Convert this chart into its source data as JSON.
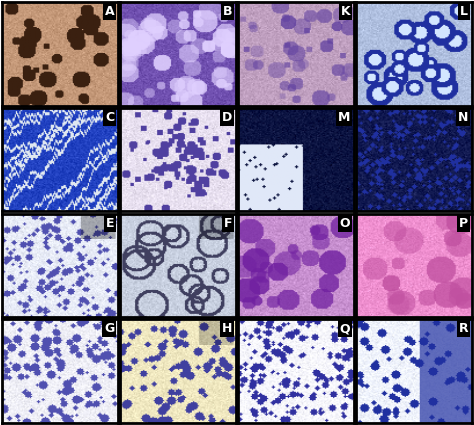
{
  "figure_width": 4.74,
  "figure_height": 4.25,
  "dpi": 100,
  "border_color": "#000000",
  "border_width": 2,
  "label_bg_color": "#000000",
  "label_text_color": "#ffffff",
  "label_fontsize": 9,
  "label_fontweight": "bold",
  "grid_rows": 4,
  "grid_cols": 4,
  "panels": [
    {
      "label": "A",
      "row": 0,
      "col": 0,
      "style": "brownish_spots"
    },
    {
      "label": "B",
      "row": 0,
      "col": 1,
      "style": "purple_dense"
    },
    {
      "label": "K",
      "row": 0,
      "col": 2,
      "style": "purple_pink_medium"
    },
    {
      "label": "L",
      "row": 0,
      "col": 3,
      "style": "blue_cells"
    },
    {
      "label": "C",
      "row": 1,
      "col": 0,
      "style": "blue_cracks"
    },
    {
      "label": "D",
      "row": 1,
      "col": 1,
      "style": "light_purple_cluster"
    },
    {
      "label": "M",
      "row": 1,
      "col": 2,
      "style": "dark_blue_patch"
    },
    {
      "label": "N",
      "row": 1,
      "col": 3,
      "style": "dark_navy_dots"
    },
    {
      "label": "E",
      "row": 2,
      "col": 0,
      "style": "light_scattered_purple"
    },
    {
      "label": "F",
      "row": 2,
      "col": 1,
      "style": "gray_large_cells"
    },
    {
      "label": "O",
      "row": 2,
      "col": 2,
      "style": "pink_purple_cluster"
    },
    {
      "label": "P",
      "row": 2,
      "col": 3,
      "style": "bright_pink_cells"
    },
    {
      "label": "G",
      "row": 3,
      "col": 0,
      "style": "white_scattered_purple"
    },
    {
      "label": "H",
      "row": 3,
      "col": 1,
      "style": "yellow_purple_cluster"
    },
    {
      "label": "Q",
      "row": 3,
      "col": 2,
      "style": "white_dense_purple"
    },
    {
      "label": "R",
      "row": 3,
      "col": 3,
      "style": "white_blue_sheet"
    }
  ],
  "panel_colors": {
    "A": {
      "base": "#c49878",
      "spot": "#3a2010",
      "crack": "#3a2010",
      "patch": "#3a2010"
    },
    "B": {
      "base": "#7050b0",
      "spot": "#e0d0ff",
      "crack": "#e0d0ff",
      "patch": "#e0d0ff"
    },
    "K": {
      "base": "#c0a0c0",
      "spot": "#6040a0",
      "crack": "#6040a0",
      "patch": "#6040a0"
    },
    "L": {
      "base": "#b0c0e0",
      "spot": "#2030a0",
      "crack": "#2030a0",
      "patch": "#2030a0"
    },
    "C": {
      "base": "#2040c0",
      "spot": "#e0e8f0",
      "crack": "#e0e8f0",
      "patch": "#e0e8f0"
    },
    "D": {
      "base": "#e8e0f0",
      "spot": "#5040a0",
      "crack": "#5040a0",
      "patch": "#5040a0"
    },
    "M": {
      "base": "#0a1240",
      "spot": "#e0e8f8",
      "crack": "#e0e8f8",
      "patch": "#e0e8f8"
    },
    "N": {
      "base": "#101850",
      "spot": "#2030a0",
      "crack": "#2030a0",
      "patch": "#2030a0"
    },
    "E": {
      "base": "#e8ecf8",
      "spot": "#5050b0",
      "crack": "#5050b0",
      "patch": "#5050b0"
    },
    "F": {
      "base": "#c8d0e0",
      "spot": "#404060",
      "crack": "#404060",
      "patch": "#404060"
    },
    "O": {
      "base": "#c890d0",
      "spot": "#7020a0",
      "crack": "#7020a0",
      "patch": "#7020a0"
    },
    "P": {
      "base": "#f090d0",
      "spot": "#c050a0",
      "crack": "#c050a0",
      "patch": "#c050a0"
    },
    "G": {
      "base": "#f0f0f8",
      "spot": "#5050b0",
      "crack": "#5050b0",
      "patch": "#5050b0"
    },
    "H": {
      "base": "#f0e8c0",
      "spot": "#4040a0",
      "crack": "#4040a0",
      "patch": "#4040a0"
    },
    "Q": {
      "base": "#f8f8ff",
      "spot": "#3030a0",
      "crack": "#3030a0",
      "patch": "#3030a0"
    },
    "R": {
      "base": "#f0f4ff",
      "spot": "#2030a0",
      "crack": "#2030a0",
      "patch": "#2030a0"
    }
  }
}
